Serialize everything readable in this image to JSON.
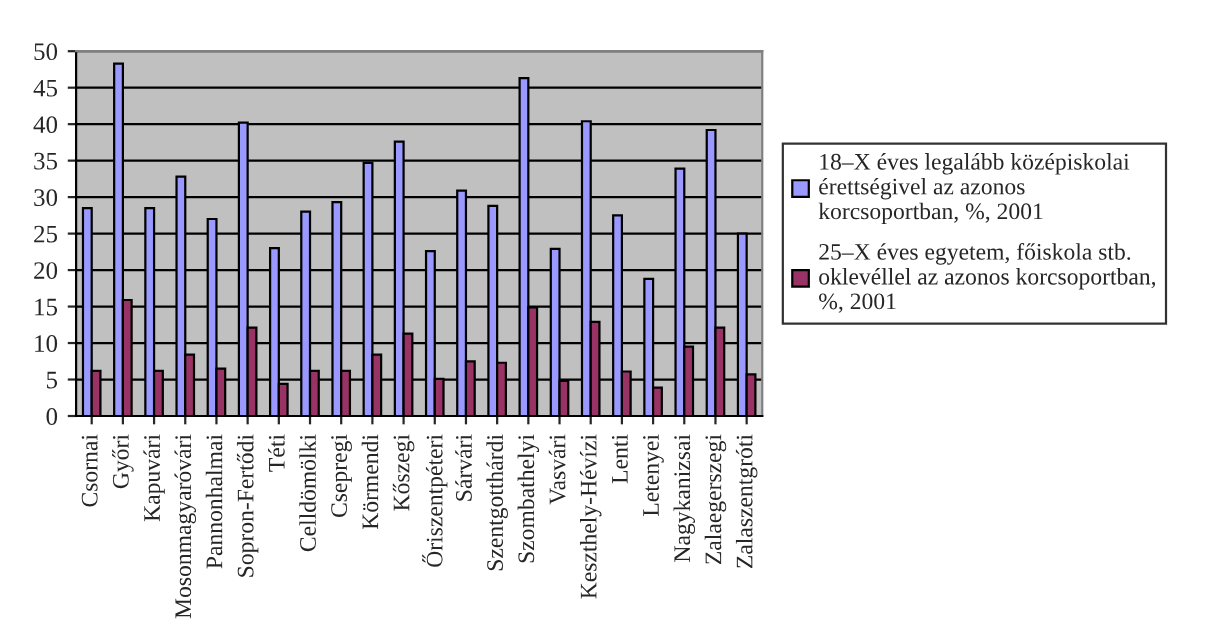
{
  "chart_data": {
    "type": "bar",
    "categories": [
      "Csornai",
      "Győri",
      "Kapuvári",
      "Mosonmagyaróvári",
      "Pannonhalmai",
      "Sopron-Fertődi",
      "Téti",
      "Celldömölki",
      "Csepregi",
      "Körmendi",
      "Kőszegi",
      "Őriszentpéteri",
      "Sárvári",
      "Szentgotthárdi",
      "Szombathelyi",
      "Vasvári",
      "Keszthely-Hévízi",
      "Lenti",
      "Letenyei",
      "Nagykanizsai",
      "Zalaegerszegi",
      "Zalaszentgróti"
    ],
    "series": [
      {
        "name": "18–X éves legalább középiskolai érettségivel az azonos korcsoportban, %, 2001",
        "color": "#9999ff",
        "values": [
          28.5,
          48.3,
          28.5,
          32.8,
          27,
          40.2,
          23,
          28,
          29.3,
          34.7,
          37.6,
          22.6,
          30.9,
          28.8,
          46.3,
          22.9,
          40.4,
          27.5,
          18.8,
          33.9,
          39.2,
          25
        ]
      },
      {
        "name": "25–X éves egyetem, főiskola stb. oklevéllel az azonos korcsoportban, %, 2001",
        "color": "#993366",
        "values": [
          6.2,
          15.9,
          6.2,
          8.4,
          6.5,
          12.1,
          4.4,
          6.2,
          6.2,
          8.4,
          11.3,
          5.1,
          7.5,
          7.3,
          14.9,
          4.8,
          12.9,
          6.1,
          3.9,
          9.5,
          12.1,
          5.7
        ]
      }
    ],
    "ylim": [
      0,
      50
    ],
    "yticks": [
      0,
      5,
      10,
      15,
      20,
      25,
      30,
      35,
      40,
      45,
      50
    ],
    "grid": "y",
    "legend": "right"
  }
}
